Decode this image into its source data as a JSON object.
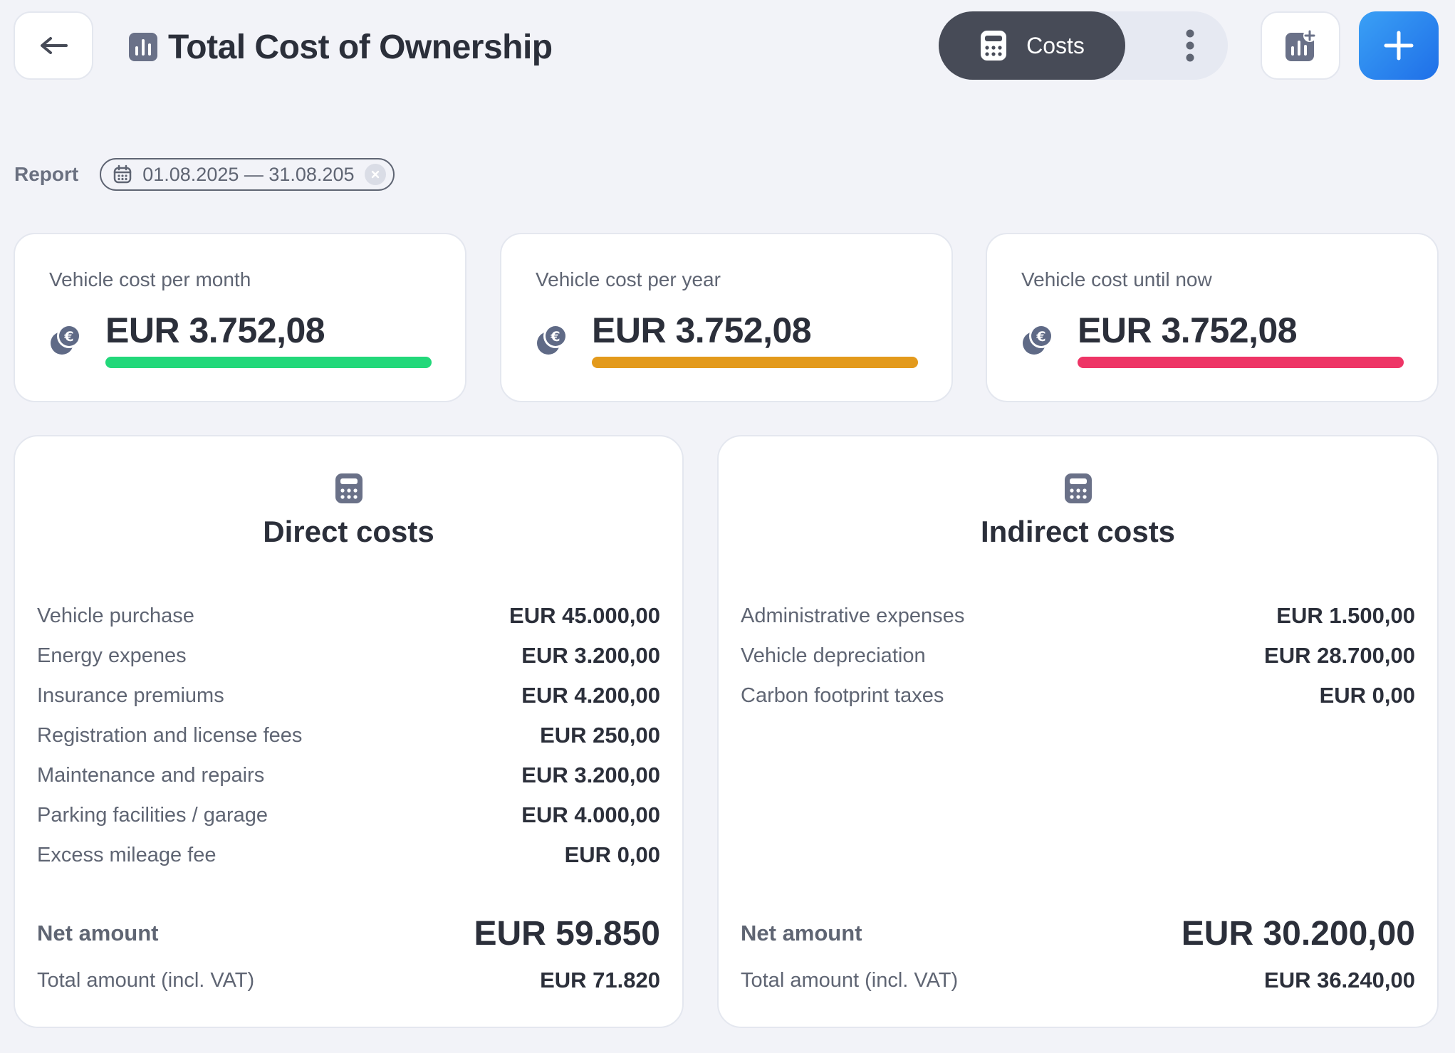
{
  "header": {
    "title": "Total Cost of Ownership",
    "costs_tab_label": "Costs"
  },
  "report": {
    "label": "Report",
    "date_range": "01.08.2025 — 31.08.205"
  },
  "kpis": [
    {
      "label": "Vehicle cost per month",
      "value": "EUR 3.752,08",
      "color": "#22d87a",
      "fill": 1.0
    },
    {
      "label": "Vehicle cost per year",
      "value": "EUR 3.752,08",
      "color": "#e39a1c",
      "fill": 1.0
    },
    {
      "label": "Vehicle cost until now",
      "value": "EUR 3.752,08",
      "color": "#ee3566",
      "fill": 1.0
    }
  ],
  "direct": {
    "title": "Direct costs",
    "rows": [
      {
        "label": "Vehicle purchase",
        "value": "EUR 45.000,00"
      },
      {
        "label": "Energy expenes",
        "value": "EUR 3.200,00"
      },
      {
        "label": "Insurance premiums",
        "value": "EUR 4.200,00"
      },
      {
        "label": "Registration and license fees",
        "value": "EUR 250,00"
      },
      {
        "label": "Maintenance and repairs",
        "value": "EUR 3.200,00"
      },
      {
        "label": "Parking facilities / garage",
        "value": "EUR 4.000,00"
      },
      {
        "label": "Excess mileage fee",
        "value": "EUR 0,00"
      }
    ],
    "net_label": "Net amount",
    "net_value": "EUR 59.850",
    "total_label": "Total amount (incl. VAT)",
    "total_value": "EUR 71.820"
  },
  "indirect": {
    "title": "Indirect costs",
    "rows": [
      {
        "label": "Administrative expenses",
        "value": "EUR 1.500,00"
      },
      {
        "label": "Vehicle depreciation",
        "value": "EUR 28.700,00"
      },
      {
        "label": "Carbon footprint taxes",
        "value": "EUR 0,00"
      }
    ],
    "net_label": "Net amount",
    "net_value": "EUR 30.200,00",
    "total_label": "Total amount (incl. VAT)",
    "total_value": "EUR 36.240,00"
  },
  "icons": {
    "back": "arrow-left-icon",
    "title": "bar-chart-icon",
    "costs": "calculator-icon",
    "more": "more-vertical-icon",
    "chart_add": "chart-add-icon",
    "add": "plus-icon",
    "calendar": "calendar-icon",
    "clear": "close-icon",
    "coin": "euro-coin-icon"
  }
}
